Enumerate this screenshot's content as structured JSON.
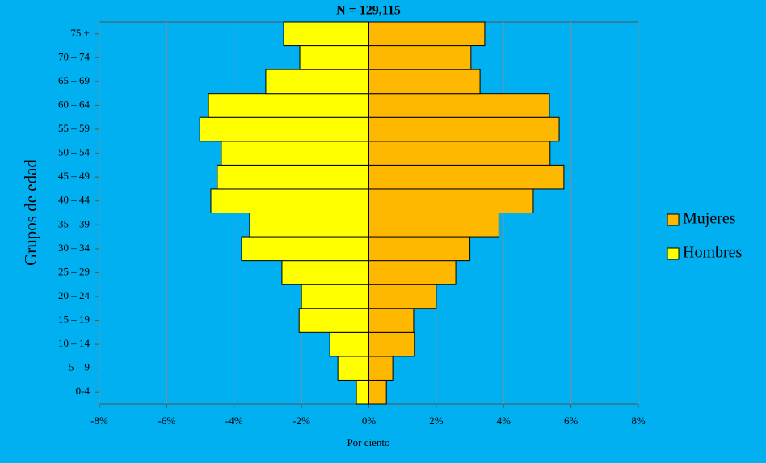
{
  "chart_data": {
    "type": "bar",
    "orientation": "horizontal",
    "stacked": false,
    "title": "N = 129,115",
    "xlabel": "Por ciento",
    "ylabel": "Grupos de edad",
    "categories": [
      "0-4",
      "5 – 9",
      "10 – 14",
      "15 – 19",
      "20 – 24",
      "25 – 29",
      "30 – 34",
      "35 – 39",
      "40 – 44",
      "45 – 49",
      "50 – 54",
      "55 – 59",
      "60 – 64",
      "65 – 69",
      "70 – 74",
      "75 +"
    ],
    "series": [
      {
        "name": "Mujeres",
        "color": "#ffb800",
        "values": [
          0.52,
          0.71,
          1.35,
          1.33,
          2.0,
          2.58,
          3.0,
          3.86,
          4.88,
          5.79,
          5.38,
          5.65,
          5.36,
          3.3,
          3.03,
          3.44
        ]
      },
      {
        "name": "Hombres",
        "color": "#ffff00",
        "values": [
          -0.37,
          -0.92,
          -1.16,
          -2.07,
          -2.0,
          -2.58,
          -3.78,
          -3.54,
          -4.69,
          -4.5,
          -4.38,
          -5.02,
          -4.76,
          -3.06,
          -2.05,
          -2.53
        ]
      }
    ],
    "xlim": [
      -8,
      8
    ],
    "xticks": [
      {
        "value": -8,
        "label": "-8%"
      },
      {
        "value": -6,
        "label": "-6%"
      },
      {
        "value": -4,
        "label": "-4%"
      },
      {
        "value": -2,
        "label": "-2%"
      },
      {
        "value": 0,
        "label": "0%"
      },
      {
        "value": 2,
        "label": "2%"
      },
      {
        "value": 4,
        "label": "4%"
      },
      {
        "value": 6,
        "label": "6%"
      },
      {
        "value": 8,
        "label": "8%"
      }
    ],
    "grid": true,
    "legend": "right"
  }
}
